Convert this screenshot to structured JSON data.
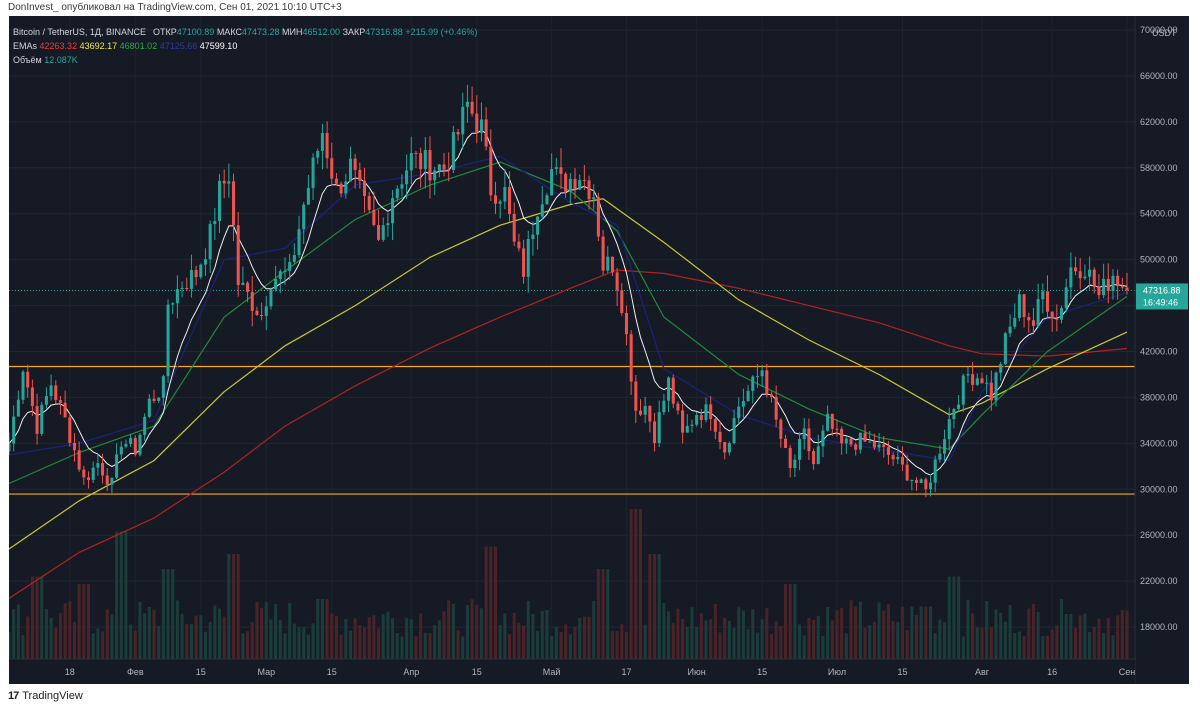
{
  "caption": "DonInvest_ опубликовал на TradingView.com, Сен 01, 2021 10:10 UTC+3",
  "footer": {
    "brand": "TradingView"
  },
  "legend": {
    "title": "Bitcoin / TetherUS, 1Д, BINANCE",
    "open_label": "ОТКР",
    "open_value": "47100.89",
    "high_label": "МАКС",
    "high_value": "47473.28",
    "low_label": "МИН",
    "low_value": "46512.00",
    "close_label": "ЗАКР",
    "close_value": "47316.88",
    "change": "+215.99 (+0.46%)",
    "emas_label": "EMAs",
    "ema_values": [
      "42263.32",
      "43692.17",
      "46801.02",
      "47125.66",
      "47599.10"
    ],
    "volume_label": "Объём",
    "volume_value": "12.087K"
  },
  "colors": {
    "background": "#161a25",
    "up": "#26a69a",
    "down": "#ef5350",
    "ema200": "#b22222",
    "ema100": "#c8c832",
    "ema50": "#1f8a3a",
    "ema21": "#1a237e",
    "ema9": "#f0f0f0",
    "level": "#f5a623",
    "price_label": "#26a69a"
  },
  "chart_data": {
    "type": "candlestick",
    "ylim": [
      14000,
      70000
    ],
    "price_ticks": [
      "70000.00",
      "66000.00",
      "62000.00",
      "58000.00",
      "54000.00",
      "50000.00",
      "46000.00",
      "42000.00",
      "38000.00",
      "34000.00",
      "30000.00",
      "26000.00",
      "22000.00",
      "18000.00"
    ],
    "currency": "USDT",
    "x_labels": [
      {
        "label": "18",
        "date": "2021-01-18"
      },
      {
        "label": "Фев",
        "date": "2021-02-01"
      },
      {
        "label": "15",
        "date": "2021-02-15"
      },
      {
        "label": "Мар",
        "date": "2021-03-01"
      },
      {
        "label": "15",
        "date": "2021-03-15"
      },
      {
        "label": "Апр",
        "date": "2021-04-01"
      },
      {
        "label": "15",
        "date": "2021-04-15"
      },
      {
        "label": "Май",
        "date": "2021-05-01"
      },
      {
        "label": "17",
        "date": "2021-05-17"
      },
      {
        "label": "Июн",
        "date": "2021-06-01"
      },
      {
        "label": "15",
        "date": "2021-06-15"
      },
      {
        "label": "Июл",
        "date": "2021-07-01"
      },
      {
        "label": "15",
        "date": "2021-07-15"
      },
      {
        "label": "Авг",
        "date": "2021-08-01"
      },
      {
        "label": "16",
        "date": "2021-08-16"
      },
      {
        "label": "Сен",
        "date": "2021-09-01"
      }
    ],
    "date_range": [
      "2021-01-05",
      "2021-09-01"
    ],
    "close_path": [
      [
        "2021-01-05",
        34000
      ],
      [
        "2021-01-08",
        40700
      ],
      [
        "2021-01-11",
        35500
      ],
      [
        "2021-01-14",
        39200
      ],
      [
        "2021-01-17",
        36000
      ],
      [
        "2021-01-21",
        30800
      ],
      [
        "2021-01-24",
        32300
      ],
      [
        "2021-01-27",
        30400
      ],
      [
        "2021-01-29",
        34300
      ],
      [
        "2021-02-01",
        33500
      ],
      [
        "2021-02-04",
        37600
      ],
      [
        "2021-02-07",
        39000
      ],
      [
        "2021-02-08",
        46200
      ],
      [
        "2021-02-11",
        47900
      ],
      [
        "2021-02-14",
        48800
      ],
      [
        "2021-02-17",
        52100
      ],
      [
        "2021-02-19",
        55900
      ],
      [
        "2021-02-21",
        57500
      ],
      [
        "2021-02-23",
        48000
      ],
      [
        "2021-02-26",
        46300
      ],
      [
        "2021-02-28",
        45200
      ],
      [
        "2021-03-02",
        48400
      ],
      [
        "2021-03-06",
        48800
      ],
      [
        "2021-03-09",
        54800
      ],
      [
        "2021-03-13",
        61200
      ],
      [
        "2021-03-16",
        56000
      ],
      [
        "2021-03-19",
        58100
      ],
      [
        "2021-03-22",
        54500
      ],
      [
        "2021-03-25",
        51400
      ],
      [
        "2021-03-28",
        55800
      ],
      [
        "2021-04-01",
        58800
      ],
      [
        "2021-04-05",
        58200
      ],
      [
        "2021-04-08",
        58000
      ],
      [
        "2021-04-10",
        59800
      ],
      [
        "2021-04-13",
        63500
      ],
      [
        "2021-04-16",
        61400
      ],
      [
        "2021-04-18",
        56200
      ],
      [
        "2021-04-21",
        55800
      ],
      [
        "2021-04-23",
        51200
      ],
      [
        "2021-04-25",
        49100
      ],
      [
        "2021-04-28",
        54900
      ],
      [
        "2021-05-01",
        57800
      ],
      [
        "2021-05-03",
        56600
      ],
      [
        "2021-05-07",
        57500
      ],
      [
        "2021-05-10",
        55800
      ],
      [
        "2021-05-12",
        49500
      ],
      [
        "2021-05-14",
        49700
      ],
      [
        "2021-05-16",
        46400
      ],
      [
        "2021-05-19",
        37000
      ],
      [
        "2021-05-21",
        37300
      ],
      [
        "2021-05-23",
        34800
      ],
      [
        "2021-05-26",
        39300
      ],
      [
        "2021-05-29",
        34600
      ],
      [
        "2021-06-01",
        36700
      ],
      [
        "2021-06-04",
        36800
      ],
      [
        "2021-06-07",
        33500
      ],
      [
        "2021-06-10",
        37300
      ],
      [
        "2021-06-13",
        39100
      ],
      [
        "2021-06-15",
        40500
      ],
      [
        "2021-06-18",
        35800
      ],
      [
        "2021-06-21",
        31600
      ],
      [
        "2021-06-24",
        34700
      ],
      [
        "2021-06-26",
        32200
      ],
      [
        "2021-06-29",
        35900
      ],
      [
        "2021-07-02",
        33800
      ],
      [
        "2021-07-06",
        34200
      ],
      [
        "2021-07-09",
        33800
      ],
      [
        "2021-07-13",
        32700
      ],
      [
        "2021-07-16",
        31400
      ],
      [
        "2021-07-20",
        29800
      ],
      [
        "2021-07-23",
        33600
      ],
      [
        "2021-07-26",
        37300
      ],
      [
        "2021-07-29",
        40000
      ],
      [
        "2021-08-01",
        39800
      ],
      [
        "2021-08-03",
        38200
      ],
      [
        "2021-08-06",
        42800
      ],
      [
        "2021-08-09",
        46300
      ],
      [
        "2021-08-12",
        44400
      ],
      [
        "2021-08-14",
        47100
      ],
      [
        "2021-08-17",
        44800
      ],
      [
        "2021-08-20",
        49300
      ],
      [
        "2021-08-23",
        49500
      ],
      [
        "2021-08-26",
        46800
      ],
      [
        "2021-08-29",
        48800
      ],
      [
        "2021-09-01",
        47316.88
      ]
    ],
    "emas": [
      {
        "name": "EMA200",
        "color": "#b22222",
        "points": [
          [
            "2021-01-05",
            20500
          ],
          [
            "2021-01-20",
            24500
          ],
          [
            "2021-02-05",
            27500
          ],
          [
            "2021-02-20",
            31500
          ],
          [
            "2021-03-05",
            35500
          ],
          [
            "2021-03-20",
            39000
          ],
          [
            "2021-04-05",
            42300
          ],
          [
            "2021-04-20",
            45000
          ],
          [
            "2021-05-05",
            47500
          ],
          [
            "2021-05-15",
            49100
          ],
          [
            "2021-05-25",
            48800
          ],
          [
            "2021-06-10",
            47500
          ],
          [
            "2021-06-25",
            46000
          ],
          [
            "2021-07-10",
            44500
          ],
          [
            "2021-07-25",
            42500
          ],
          [
            "2021-08-01",
            41800
          ],
          [
            "2021-08-15",
            41600
          ],
          [
            "2021-09-01",
            42263
          ]
        ]
      },
      {
        "name": "EMA100",
        "color": "#c8c832",
        "points": [
          [
            "2021-01-05",
            24800
          ],
          [
            "2021-01-20",
            29000
          ],
          [
            "2021-02-05",
            32500
          ],
          [
            "2021-02-20",
            38500
          ],
          [
            "2021-03-05",
            42500
          ],
          [
            "2021-03-20",
            46000
          ],
          [
            "2021-04-05",
            50200
          ],
          [
            "2021-04-20",
            53000
          ],
          [
            "2021-05-05",
            54800
          ],
          [
            "2021-05-12",
            55300
          ],
          [
            "2021-05-25",
            51500
          ],
          [
            "2021-06-10",
            46500
          ],
          [
            "2021-06-25",
            43000
          ],
          [
            "2021-07-10",
            40000
          ],
          [
            "2021-07-25",
            36500
          ],
          [
            "2021-08-01",
            37500
          ],
          [
            "2021-08-15",
            40500
          ],
          [
            "2021-09-01",
            43692
          ]
        ]
      },
      {
        "name": "EMA50",
        "color": "#1f8a3a",
        "points": [
          [
            "2021-01-05",
            30500
          ],
          [
            "2021-01-20",
            33200
          ],
          [
            "2021-02-05",
            35500
          ],
          [
            "2021-02-20",
            45000
          ],
          [
            "2021-03-05",
            49000
          ],
          [
            "2021-03-20",
            53500
          ],
          [
            "2021-04-05",
            56500
          ],
          [
            "2021-04-20",
            58500
          ],
          [
            "2021-05-05",
            56000
          ],
          [
            "2021-05-15",
            52500
          ],
          [
            "2021-05-25",
            45000
          ],
          [
            "2021-06-10",
            40000
          ],
          [
            "2021-06-25",
            37000
          ],
          [
            "2021-07-10",
            34500
          ],
          [
            "2021-07-25",
            33500
          ],
          [
            "2021-08-01",
            36500
          ],
          [
            "2021-08-15",
            42000
          ],
          [
            "2021-09-01",
            46801
          ]
        ]
      },
      {
        "name": "EMA21",
        "color": "#1a237e",
        "points": [
          [
            "2021-01-05",
            33000
          ],
          [
            "2021-01-20",
            34000
          ],
          [
            "2021-02-05",
            36000
          ],
          [
            "2021-02-20",
            50000
          ],
          [
            "2021-03-05",
            51000
          ],
          [
            "2021-03-20",
            56500
          ],
          [
            "2021-04-05",
            57500
          ],
          [
            "2021-04-20",
            59000
          ],
          [
            "2021-05-05",
            55000
          ],
          [
            "2021-05-15",
            53000
          ],
          [
            "2021-05-25",
            40500
          ],
          [
            "2021-06-10",
            36500
          ],
          [
            "2021-06-25",
            34500
          ],
          [
            "2021-07-10",
            33500
          ],
          [
            "2021-07-25",
            32500
          ],
          [
            "2021-08-01",
            38500
          ],
          [
            "2021-08-15",
            45000
          ],
          [
            "2021-09-01",
            47125
          ]
        ]
      }
    ],
    "levels": [
      {
        "value": 40695.95,
        "label": "40695.95"
      },
      {
        "value": 29585.15,
        "label": "29585.15"
      }
    ],
    "last_price": {
      "value": 47316.88,
      "label": "47316.88",
      "countdown": "16:49:46"
    },
    "volume_spikes": [
      [
        "2021-01-11",
        0.55
      ],
      [
        "2021-01-21",
        0.5
      ],
      [
        "2021-01-29",
        0.85
      ],
      [
        "2021-02-08",
        0.6
      ],
      [
        "2021-02-22",
        0.7
      ],
      [
        "2021-03-13",
        0.4
      ],
      [
        "2021-04-18",
        0.75
      ],
      [
        "2021-05-12",
        0.6
      ],
      [
        "2021-05-19",
        1.0
      ],
      [
        "2021-05-23",
        0.7
      ],
      [
        "2021-06-21",
        0.5
      ],
      [
        "2021-07-20",
        0.35
      ],
      [
        "2021-07-26",
        0.55
      ],
      [
        "2021-08-19",
        0.3
      ]
    ]
  }
}
